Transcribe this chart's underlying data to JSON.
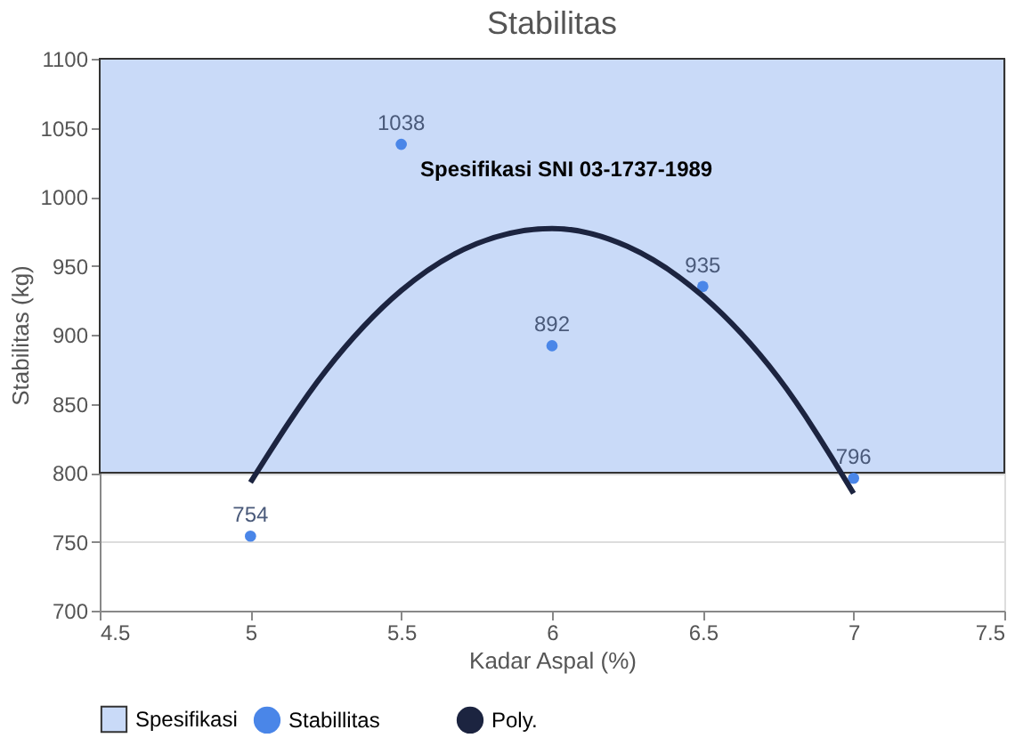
{
  "chart_data": {
    "type": "scatter",
    "title": "Stabilitas",
    "xlabel": "Kadar Aspal (%)",
    "ylabel": "Stabilitas (kg)",
    "x": [
      5,
      5.5,
      6,
      6.5,
      7
    ],
    "series": [
      {
        "name": "Stabillitas",
        "marker": "circle",
        "color": "#4a86e8",
        "values": [
          754,
          1038,
          892,
          935,
          796
        ],
        "value_labels": [
          "754",
          "1038",
          "892",
          "935",
          "796"
        ]
      },
      {
        "name": "Poly.",
        "type": "line",
        "marker": "none",
        "line_style": "solid",
        "color": "#1c2440",
        "x": [
          5,
          5.25,
          5.5,
          5.75,
          6,
          6.25,
          6.5,
          6.75,
          7
        ],
        "values": [
          793,
          874,
          932,
          966,
          977,
          964,
          928,
          869,
          785
        ]
      }
    ],
    "bands": [
      {
        "axis": "y",
        "from": 800,
        "to": 1100,
        "label": "Spesifikasi",
        "color": "#c9daf8"
      }
    ],
    "annotations": [
      "Spesifikasi SNI 03-1737-1989"
    ],
    "xlim": [
      4.5,
      7.5
    ],
    "xticks": [
      4.5,
      5,
      5.5,
      6,
      6.5,
      7,
      7.5
    ],
    "ylim": [
      700,
      1100
    ],
    "yticks": [
      700,
      750,
      800,
      850,
      900,
      950,
      1000,
      1050,
      1100
    ],
    "grid": "y",
    "legend": "bottom"
  }
}
